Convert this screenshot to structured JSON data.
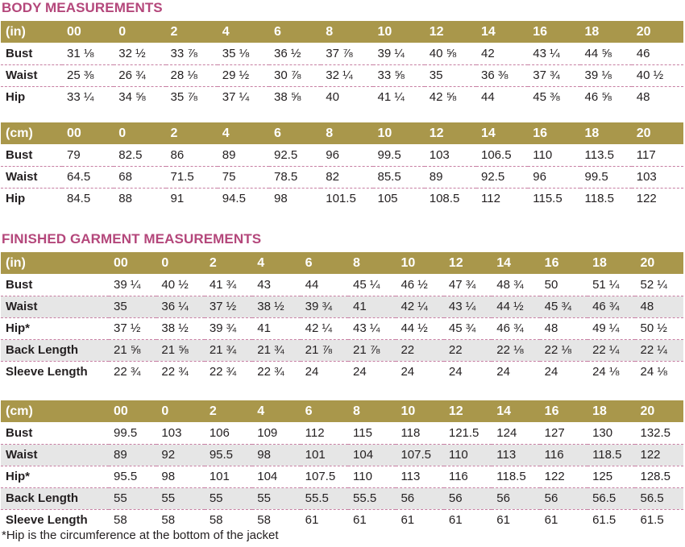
{
  "body": {
    "title": "BODY MEASUREMENTS",
    "inches": {
      "header": [
        "(in)",
        "00",
        "0",
        "2",
        "4",
        "6",
        "8",
        "10",
        "12",
        "14",
        "16",
        "18",
        "20"
      ],
      "rows": [
        [
          "Bust",
          "31 ⅛",
          "32 ½",
          "33 ⅞",
          "35 ⅛",
          "36 ½",
          "37 ⅞",
          "39 ¼",
          "40 ⅝",
          "42",
          "43 ¼",
          "44 ⅝",
          "46"
        ],
        [
          "Waist",
          "25 ⅜",
          "26 ¾",
          "28 ⅛",
          "29 ½",
          "30 ⅞",
          "32 ¼",
          "33 ⅝",
          "35",
          "36 ⅜",
          "37 ¾",
          "39 ⅛",
          "40 ½"
        ],
        [
          "Hip",
          "33 ¼",
          "34 ⅝",
          "35 ⅞",
          "37 ¼",
          "38 ⅝",
          "40",
          "41 ¼",
          "42 ⅝",
          "44",
          "45 ⅜",
          "46 ⅝",
          "48"
        ]
      ]
    },
    "cm": {
      "header": [
        "(cm)",
        "00",
        "0",
        "2",
        "4",
        "6",
        "8",
        "10",
        "12",
        "14",
        "16",
        "18",
        "20"
      ],
      "rows": [
        [
          "Bust",
          "79",
          "82.5",
          "86",
          "89",
          "92.5",
          "96",
          "99.5",
          "103",
          "106.5",
          "110",
          "113.5",
          "117"
        ],
        [
          "Waist",
          "64.5",
          "68",
          "71.5",
          "75",
          "78.5",
          "82",
          "85.5",
          "89",
          "92.5",
          "96",
          "99.5",
          "103"
        ],
        [
          "Hip",
          "84.5",
          "88",
          "91",
          "94.5",
          "98",
          "101.5",
          "105",
          "108.5",
          "112",
          "115.5",
          "118.5",
          "122"
        ]
      ]
    }
  },
  "finished": {
    "title": "FINISHED GARMENT MEASUREMENTS",
    "inches": {
      "header": [
        "(in)",
        "00",
        "0",
        "2",
        "4",
        "6",
        "8",
        "10",
        "12",
        "14",
        "16",
        "18",
        "20"
      ],
      "rows": [
        [
          "Bust",
          "39 ¼",
          "40 ½",
          "41 ¾",
          "43",
          "44",
          "45 ¼",
          "46 ½",
          "47 ¾",
          "48 ¾",
          "50",
          "51 ¼",
          "52 ¼"
        ],
        [
          "Waist",
          "35",
          "36 ¼",
          "37 ½",
          "38 ½",
          "39 ¾",
          "41",
          "42 ¼",
          "43 ¼",
          "44 ½",
          "45 ¾",
          "46 ¾",
          "48"
        ],
        [
          "Hip*",
          "37 ½",
          "38 ½",
          "39 ¾",
          "41",
          "42 ¼",
          "43 ¼",
          "44 ½",
          "45 ¾",
          "46 ¾",
          "48",
          "49 ¼",
          "50 ½"
        ],
        [
          "Back Length",
          "21 ⅝",
          "21 ⅝",
          "21 ¾",
          "21 ¾",
          "21 ⅞",
          "21 ⅞",
          "22",
          "22",
          "22 ⅛",
          "22 ⅛",
          "22 ¼",
          "22 ¼"
        ],
        [
          "Sleeve Length",
          "22 ¾",
          "22 ¾",
          "22 ¾",
          "22 ¾",
          "24",
          "24",
          "24",
          "24",
          "24",
          "24",
          "24 ⅛",
          "24 ⅛"
        ]
      ]
    },
    "cm": {
      "header": [
        "(cm)",
        "00",
        "0",
        "2",
        "4",
        "6",
        "8",
        "10",
        "12",
        "14",
        "16",
        "18",
        "20"
      ],
      "rows": [
        [
          "Bust",
          "99.5",
          "103",
          "106",
          "109",
          "112",
          "115",
          "118",
          "121.5",
          "124",
          "127",
          "130",
          "132.5"
        ],
        [
          "Waist",
          "89",
          "92",
          "95.5",
          "98",
          "101",
          "104",
          "107.5",
          "110",
          "113",
          "116",
          "118.5",
          "122"
        ],
        [
          "Hip*",
          "95.5",
          "98",
          "101",
          "104",
          "107.5",
          "110",
          "113",
          "116",
          "118.5",
          "122",
          "125",
          "128.5"
        ],
        [
          "Back Length",
          "55",
          "55",
          "55",
          "55",
          "55.5",
          "55.5",
          "56",
          "56",
          "56",
          "56",
          "56.5",
          "56.5"
        ],
        [
          "Sleeve Length",
          "58",
          "58",
          "58",
          "58",
          "61",
          "61",
          "61",
          "61",
          "61",
          "61",
          "61.5",
          "61.5"
        ]
      ]
    }
  },
  "footnote": "*Hip is the circumference at the bottom of the jacket",
  "colors": {
    "heading": "#b4477b",
    "header_band": "#a9974b",
    "row_shade": "#e6e6e6",
    "divider": "#c77fa3"
  }
}
